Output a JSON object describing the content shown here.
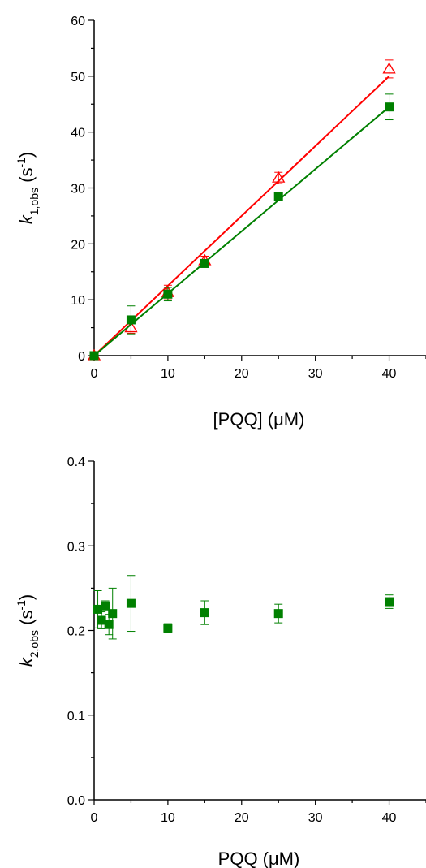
{
  "chart_data": [
    {
      "type": "scatter",
      "title": "",
      "xlabel": "[PQQ] (μM)",
      "ylabel": {
        "symbol": "k",
        "subscript": "1,obs",
        "unit_open": " (s",
        "unit_sup": "-1",
        "unit_close": ")"
      },
      "xlim": [
        0,
        45
      ],
      "ylim": [
        0,
        60
      ],
      "xticks": [
        0,
        10,
        20,
        30,
        40
      ],
      "yticks": [
        0,
        10,
        20,
        30,
        40,
        50,
        60
      ],
      "grid": false,
      "legend": "none",
      "series": [
        {
          "marker": "open-triangle",
          "color": "#ff0000",
          "x": [
            0,
            5,
            10,
            15,
            25,
            40
          ],
          "y": [
            0,
            5.0,
            11.3,
            17.0,
            31.8,
            51.3
          ],
          "err": [
            0,
            1.0,
            1.3,
            0.8,
            1.0,
            1.6
          ],
          "fit": {
            "x": [
              0,
              40
            ],
            "y": [
              0,
              50.0
            ]
          }
        },
        {
          "marker": "filled-square",
          "color": "#008000",
          "x": [
            0,
            5,
            10,
            15,
            25,
            40
          ],
          "y": [
            0,
            6.4,
            11.0,
            16.5,
            28.5,
            44.5
          ],
          "err": [
            0,
            2.5,
            1.2,
            0.7,
            0.5,
            2.3
          ],
          "fit": {
            "x": [
              0,
              40
            ],
            "y": [
              0,
              44.5
            ]
          }
        }
      ]
    },
    {
      "type": "scatter",
      "title": "",
      "xlabel": "PQQ (μM)",
      "ylabel": {
        "symbol": "k",
        "subscript": "2,obs",
        "unit_open": " (s",
        "unit_sup": "-1",
        "unit_close": ")"
      },
      "xlim": [
        0,
        45
      ],
      "ylim": [
        0,
        0.4
      ],
      "xticks": [
        0,
        10,
        20,
        30,
        40
      ],
      "yticks": [
        "0.0",
        "0.1",
        "0.2",
        "0.3",
        "0.4"
      ],
      "grid": false,
      "legend": "none",
      "series": [
        {
          "marker": "filled-square",
          "color": "#008000",
          "x": [
            0.5,
            1,
            1.5,
            2,
            2.5,
            5,
            10,
            15,
            25,
            40
          ],
          "y": [
            0.225,
            0.212,
            0.229,
            0.207,
            0.22,
            0.232,
            0.203,
            0.221,
            0.22,
            0.234
          ],
          "err": [
            0.022,
            0.01,
            0.006,
            0.012,
            0.03,
            0.033,
            0.005,
            0.014,
            0.011,
            0.008
          ]
        }
      ]
    }
  ]
}
